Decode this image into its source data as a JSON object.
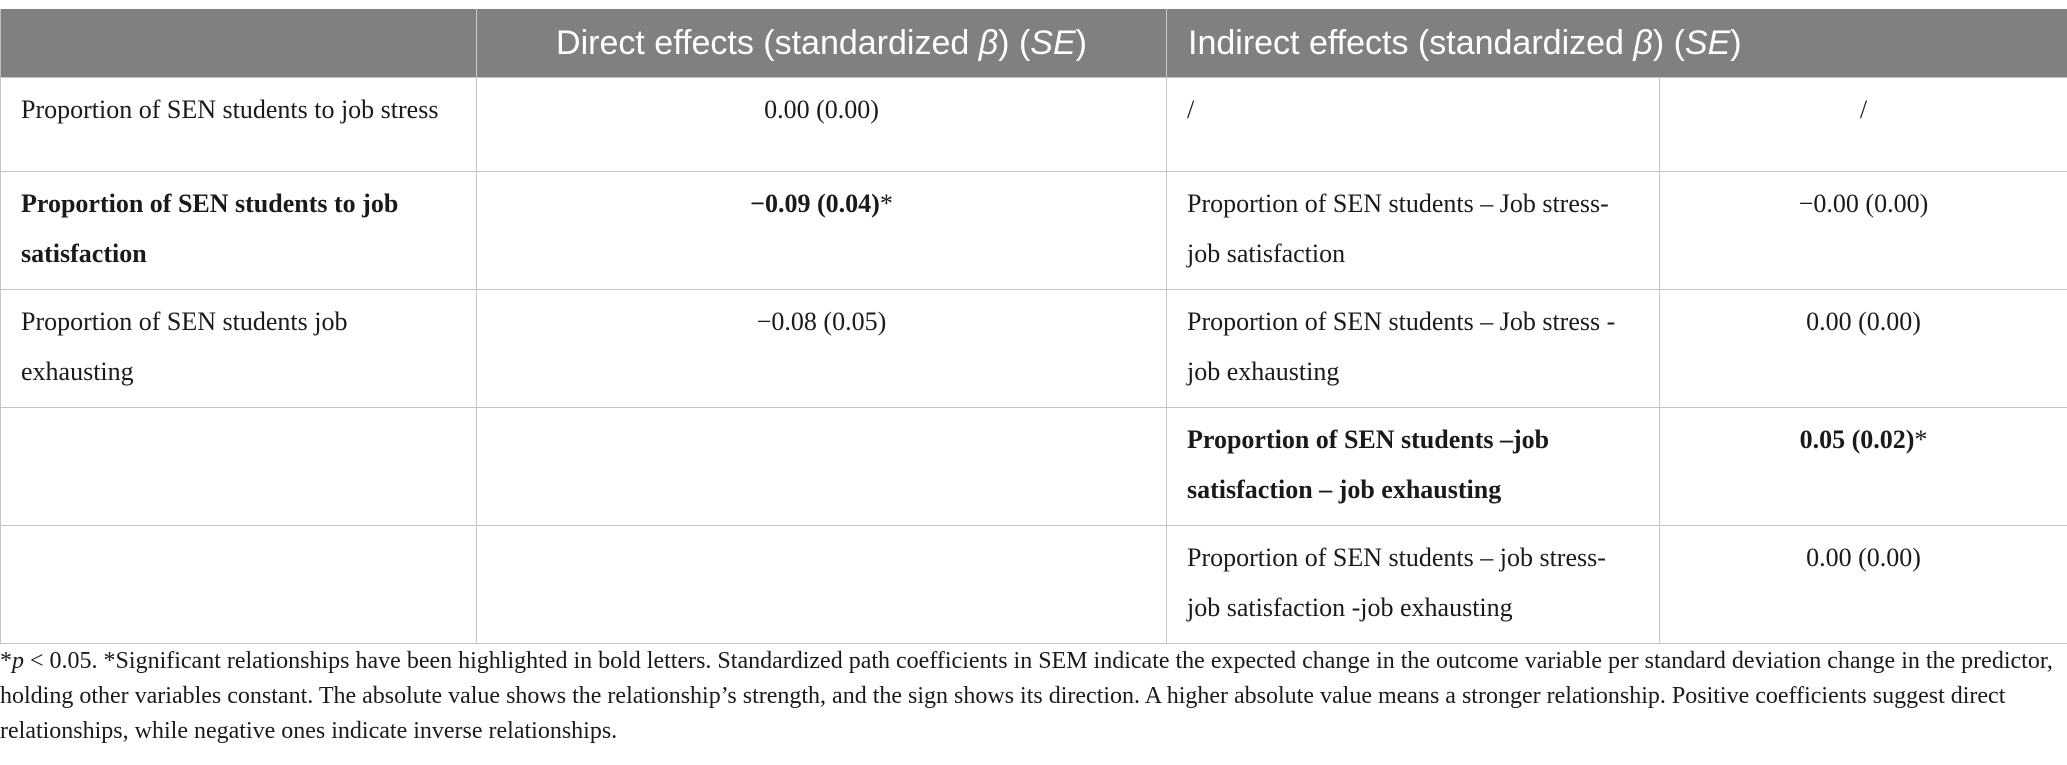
{
  "header": {
    "direct_prefix": "Direct effects (standardized ",
    "indirect_prefix": "Indirect effects (standardized ",
    "beta": "β",
    "paren_mid": ") (",
    "se": "SE",
    "paren_end": ")"
  },
  "rows": [
    {
      "c1": "Proportion of SEN students to job stress",
      "c2": "0.00 (0.00)",
      "c3": "/",
      "c4": "/"
    },
    {
      "c1": "Proportion of SEN students to job satisfaction",
      "c2_bold": "−0.09 (0.04)",
      "c2_star": "*",
      "c3": "Proportion of SEN students – Job stress-job satisfaction",
      "c4": "−0.00 (0.00)"
    },
    {
      "c1": "Proportion of SEN students job exhausting",
      "c2": "−0.08 (0.05)",
      "c3": "Proportion of SEN students – Job stress -job exhausting",
      "c4": "0.00 (0.00)"
    },
    {
      "c1": "",
      "c2": "",
      "c3": "Proportion of SEN students –job satisfaction – job exhausting",
      "c4_bold": "0.05 (0.02)",
      "c4_star": "*"
    },
    {
      "c1": "",
      "c2": "",
      "c3": "Proportion of SEN students – job stress-job satisfaction -job exhausting",
      "c4": "0.00 (0.00)"
    }
  ],
  "footnote": {
    "star": "*",
    "p": "p",
    "threshold": " < 0.05. ",
    "text": "*Significant relationships have been highlighted in bold letters. Standardized path coefficients in SEM indicate the expected change in the outcome variable per standard deviation change in the predictor, holding other variables constant. The absolute value shows the relationship’s strength, and the sign shows its direction. A higher absolute value means a stronger relationship. Positive coefficients suggest direct relationships, while negative ones indicate inverse relationships."
  }
}
